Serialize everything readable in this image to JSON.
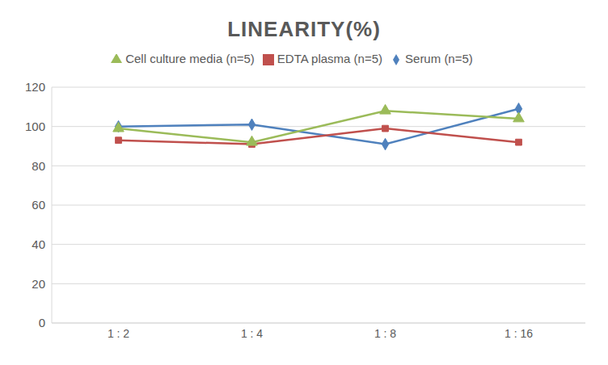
{
  "chart_data": {
    "type": "line",
    "title": "LINEARITY(%)",
    "categories": [
      "1 : 2",
      "1 : 4",
      "1 : 8",
      "1 : 16"
    ],
    "series": [
      {
        "name": "Serum (n=5)",
        "color": "#4f81bd",
        "marker": "diamond",
        "values": [
          100,
          101,
          91,
          109
        ]
      },
      {
        "name": "EDTA plasma (n=5)",
        "color": "#c0504d",
        "marker": "square",
        "values": [
          93,
          91,
          99,
          92
        ]
      },
      {
        "name": "Cell culture media (n=5)",
        "color": "#9bbb59",
        "marker": "triangle",
        "values": [
          99,
          92,
          108,
          104
        ]
      }
    ],
    "ylim": [
      0,
      120
    ],
    "yticks": [
      0,
      20,
      40,
      60,
      80,
      100,
      120
    ],
    "grid": true,
    "legend": "top"
  }
}
